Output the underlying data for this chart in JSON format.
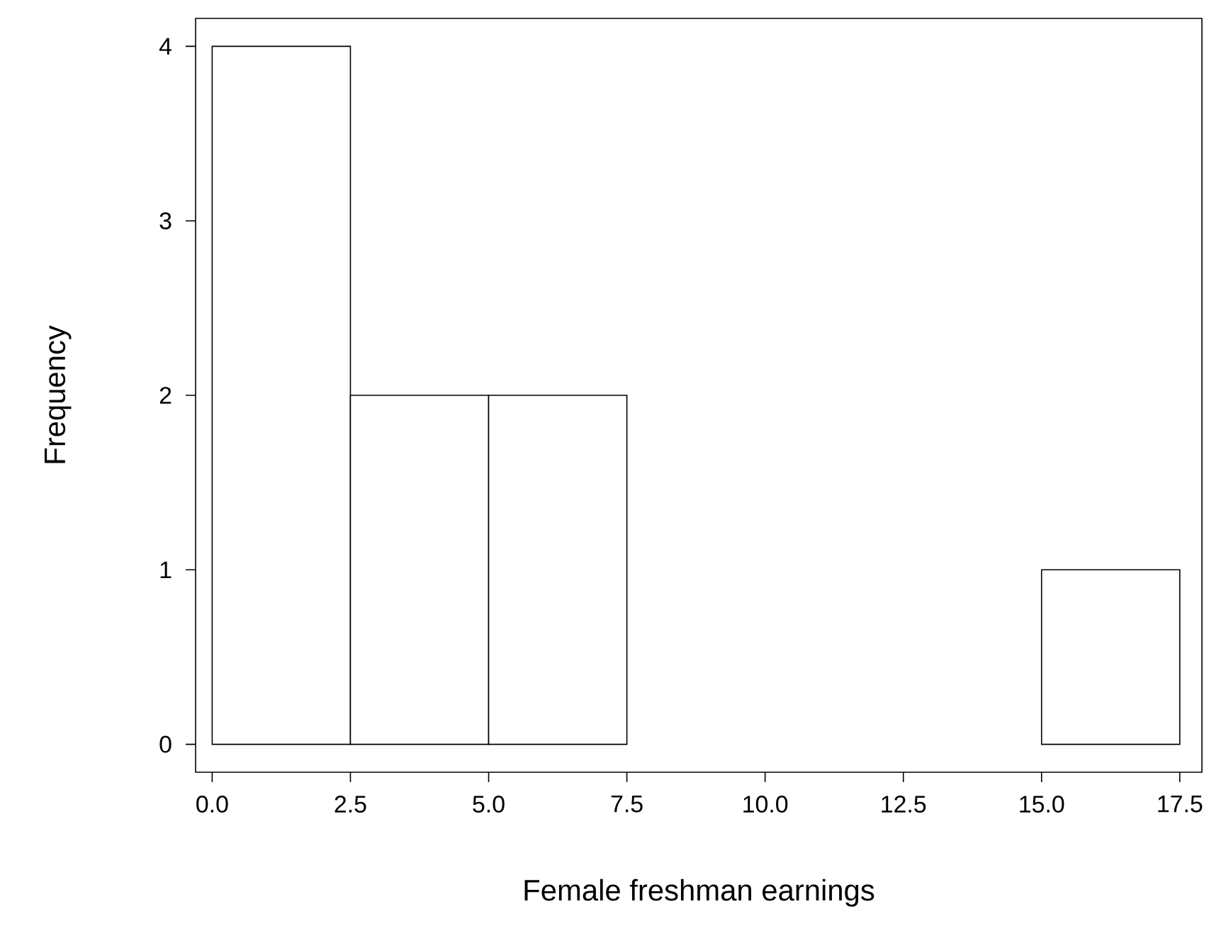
{
  "chart_data": {
    "type": "histogram",
    "xlabel": "Female freshman earnings",
    "ylabel": "Frequency",
    "bins": [
      0,
      2.5,
      5,
      7.5,
      10,
      12.5,
      15,
      17.5
    ],
    "values": [
      4,
      2,
      2,
      0,
      0,
      0,
      1
    ],
    "color": "#ffffff",
    "xlim": [
      -0.3,
      17.9
    ],
    "ylim": [
      -0.16,
      4.16
    ],
    "xticks": [
      {
        "value": 0,
        "label": "0.0"
      },
      {
        "value": 2.5,
        "label": "2.5"
      },
      {
        "value": 5,
        "label": "5.0"
      },
      {
        "value": 7.5,
        "label": "7.5"
      },
      {
        "value": 10,
        "label": "10.0"
      },
      {
        "value": 12.5,
        "label": "12.5"
      },
      {
        "value": 15,
        "label": "15.0"
      },
      {
        "value": 17.5,
        "label": "17.5"
      }
    ],
    "yticks": [
      0,
      1,
      2,
      3,
      4
    ],
    "grid": false
  }
}
